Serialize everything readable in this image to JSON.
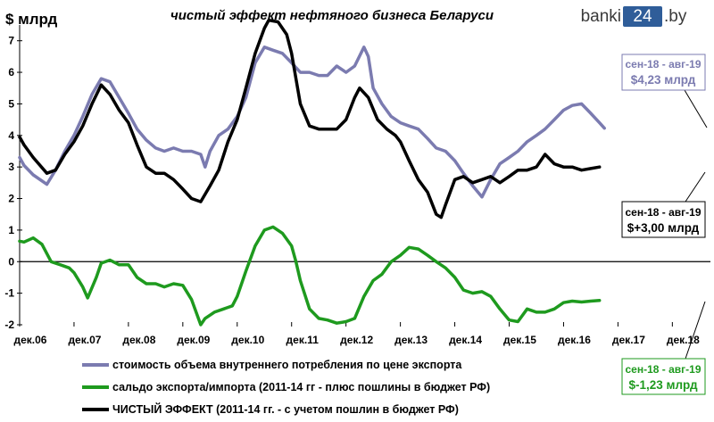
{
  "logo": {
    "prefix": "banki",
    "number": "24",
    "suffix": ".by"
  },
  "chart_data": {
    "type": "line",
    "title": "чистый эффект нефтяного бизнеса Беларуси",
    "unit_label": "$ млрд",
    "ylim": [
      -2,
      7.5
    ],
    "yticks": [
      -2,
      -1,
      0,
      1,
      2,
      3,
      4,
      5,
      6,
      7
    ],
    "xlim": [
      2006.92,
      2019.62
    ],
    "x_tick_labels": [
      {
        "label": "дек.06",
        "x": 2006.92
      },
      {
        "label": "дек.07",
        "x": 2007.92
      },
      {
        "label": "дек.08",
        "x": 2008.92
      },
      {
        "label": "дек.09",
        "x": 2009.92
      },
      {
        "label": "дек.10",
        "x": 2010.92
      },
      {
        "label": "дек.11",
        "x": 2011.92
      },
      {
        "label": "дек.12",
        "x": 2012.92
      },
      {
        "label": "дек.13",
        "x": 2013.92
      },
      {
        "label": "дек.14",
        "x": 2014.92
      },
      {
        "label": "дек.15",
        "x": 2015.92
      },
      {
        "label": "дек.16",
        "x": 2016.92
      },
      {
        "label": "дек.17",
        "x": 2017.92
      },
      {
        "label": "дек.18",
        "x": 2018.92
      }
    ],
    "grid": false,
    "legend_position": "bottom-left",
    "series": [
      {
        "name": "стоимость объема внутреннего потребления по цене экспорта",
        "color": "#7b7bb0",
        "points": [
          [
            2006.92,
            3.3
          ],
          [
            2007.0,
            3.05
          ],
          [
            2007.17,
            2.75
          ],
          [
            2007.42,
            2.45
          ],
          [
            2007.58,
            2.9
          ],
          [
            2007.75,
            3.5
          ],
          [
            2007.92,
            4.0
          ],
          [
            2008.08,
            4.6
          ],
          [
            2008.25,
            5.3
          ],
          [
            2008.42,
            5.8
          ],
          [
            2008.58,
            5.7
          ],
          [
            2008.75,
            5.2
          ],
          [
            2008.92,
            4.7
          ],
          [
            2009.08,
            4.2
          ],
          [
            2009.25,
            3.85
          ],
          [
            2009.42,
            3.6
          ],
          [
            2009.58,
            3.5
          ],
          [
            2009.75,
            3.6
          ],
          [
            2009.92,
            3.5
          ],
          [
            2010.08,
            3.5
          ],
          [
            2010.25,
            3.4
          ],
          [
            2010.33,
            3.0
          ],
          [
            2010.42,
            3.5
          ],
          [
            2010.58,
            4.0
          ],
          [
            2010.75,
            4.2
          ],
          [
            2010.92,
            4.6
          ],
          [
            2011.08,
            5.2
          ],
          [
            2011.25,
            6.3
          ],
          [
            2011.42,
            6.8
          ],
          [
            2011.58,
            6.7
          ],
          [
            2011.75,
            6.6
          ],
          [
            2011.92,
            6.3
          ],
          [
            2012.08,
            6.0
          ],
          [
            2012.25,
            6.0
          ],
          [
            2012.42,
            5.9
          ],
          [
            2012.58,
            5.9
          ],
          [
            2012.75,
            6.2
          ],
          [
            2012.92,
            6.0
          ],
          [
            2013.08,
            6.2
          ],
          [
            2013.25,
            6.8
          ],
          [
            2013.33,
            6.5
          ],
          [
            2013.42,
            5.5
          ],
          [
            2013.58,
            5.0
          ],
          [
            2013.75,
            4.6
          ],
          [
            2013.92,
            4.4
          ],
          [
            2014.08,
            4.3
          ],
          [
            2014.25,
            4.2
          ],
          [
            2014.42,
            3.9
          ],
          [
            2014.58,
            3.6
          ],
          [
            2014.75,
            3.5
          ],
          [
            2014.92,
            3.2
          ],
          [
            2015.08,
            2.8
          ],
          [
            2015.25,
            2.4
          ],
          [
            2015.42,
            2.05
          ],
          [
            2015.58,
            2.6
          ],
          [
            2015.75,
            3.1
          ],
          [
            2015.92,
            3.3
          ],
          [
            2016.08,
            3.5
          ],
          [
            2016.25,
            3.8
          ],
          [
            2016.42,
            4.0
          ],
          [
            2016.58,
            4.2
          ],
          [
            2016.75,
            4.5
          ],
          [
            2016.92,
            4.8
          ],
          [
            2017.08,
            4.95
          ],
          [
            2017.25,
            5.0
          ],
          [
            2017.42,
            4.7
          ],
          [
            2017.58,
            4.4
          ],
          [
            2017.67,
            4.23
          ]
        ]
      },
      {
        "name": "сальдо экспорта/импорта (2011-14 гг  - плюс пошлины в бюджет РФ)",
        "color": "#1e9a1e",
        "points": [
          [
            2006.92,
            0.65
          ],
          [
            2007.0,
            0.62
          ],
          [
            2007.17,
            0.75
          ],
          [
            2007.33,
            0.55
          ],
          [
            2007.5,
            0.0
          ],
          [
            2007.67,
            -0.1
          ],
          [
            2007.83,
            -0.2
          ],
          [
            2007.92,
            -0.35
          ],
          [
            2008.08,
            -0.8
          ],
          [
            2008.17,
            -1.15
          ],
          [
            2008.33,
            -0.5
          ],
          [
            2008.42,
            -0.05
          ],
          [
            2008.58,
            0.05
          ],
          [
            2008.75,
            -0.1
          ],
          [
            2008.92,
            -0.1
          ],
          [
            2009.08,
            -0.5
          ],
          [
            2009.25,
            -0.7
          ],
          [
            2009.42,
            -0.7
          ],
          [
            2009.58,
            -0.8
          ],
          [
            2009.75,
            -0.7
          ],
          [
            2009.92,
            -0.75
          ],
          [
            2010.08,
            -1.2
          ],
          [
            2010.25,
            -2.0
          ],
          [
            2010.33,
            -1.8
          ],
          [
            2010.5,
            -1.6
          ],
          [
            2010.67,
            -1.5
          ],
          [
            2010.83,
            -1.4
          ],
          [
            2010.92,
            -1.1
          ],
          [
            2011.08,
            -0.3
          ],
          [
            2011.25,
            0.5
          ],
          [
            2011.42,
            1.0
          ],
          [
            2011.58,
            1.1
          ],
          [
            2011.75,
            0.9
          ],
          [
            2011.92,
            0.5
          ],
          [
            2012.0,
            0.0
          ],
          [
            2012.08,
            -0.6
          ],
          [
            2012.25,
            -1.5
          ],
          [
            2012.42,
            -1.8
          ],
          [
            2012.58,
            -1.85
          ],
          [
            2012.75,
            -1.95
          ],
          [
            2012.92,
            -1.9
          ],
          [
            2013.08,
            -1.8
          ],
          [
            2013.25,
            -1.1
          ],
          [
            2013.42,
            -0.6
          ],
          [
            2013.58,
            -0.4
          ],
          [
            2013.75,
            0.0
          ],
          [
            2013.92,
            0.2
          ],
          [
            2014.08,
            0.45
          ],
          [
            2014.25,
            0.4
          ],
          [
            2014.42,
            0.2
          ],
          [
            2014.58,
            0.0
          ],
          [
            2014.75,
            -0.2
          ],
          [
            2014.92,
            -0.5
          ],
          [
            2015.08,
            -0.9
          ],
          [
            2015.25,
            -1.0
          ],
          [
            2015.42,
            -0.95
          ],
          [
            2015.58,
            -1.1
          ],
          [
            2015.75,
            -1.5
          ],
          [
            2015.92,
            -1.85
          ],
          [
            2016.08,
            -1.9
          ],
          [
            2016.25,
            -1.5
          ],
          [
            2016.42,
            -1.6
          ],
          [
            2016.58,
            -1.6
          ],
          [
            2016.75,
            -1.5
          ],
          [
            2016.92,
            -1.3
          ],
          [
            2017.08,
            -1.25
          ],
          [
            2017.25,
            -1.28
          ],
          [
            2017.42,
            -1.25
          ],
          [
            2017.58,
            -1.23
          ]
        ]
      },
      {
        "name": "ЧИСТЫЙ ЭФФЕКТ (2011-14 гг. - с учетом пошлин в бюджет РФ)",
        "color": "#000000",
        "points": [
          [
            2006.92,
            3.95
          ],
          [
            2007.0,
            3.7
          ],
          [
            2007.17,
            3.3
          ],
          [
            2007.42,
            2.8
          ],
          [
            2007.58,
            2.9
          ],
          [
            2007.75,
            3.4
          ],
          [
            2007.92,
            3.8
          ],
          [
            2008.08,
            4.3
          ],
          [
            2008.25,
            5.0
          ],
          [
            2008.42,
            5.6
          ],
          [
            2008.58,
            5.3
          ],
          [
            2008.75,
            4.8
          ],
          [
            2008.92,
            4.4
          ],
          [
            2009.08,
            3.7
          ],
          [
            2009.25,
            3.0
          ],
          [
            2009.42,
            2.8
          ],
          [
            2009.58,
            2.8
          ],
          [
            2009.75,
            2.6
          ],
          [
            2009.92,
            2.3
          ],
          [
            2010.08,
            2.0
          ],
          [
            2010.25,
            1.9
          ],
          [
            2010.42,
            2.4
          ],
          [
            2010.58,
            2.9
          ],
          [
            2010.75,
            3.8
          ],
          [
            2010.92,
            4.5
          ],
          [
            2011.08,
            5.5
          ],
          [
            2011.25,
            6.6
          ],
          [
            2011.42,
            7.4
          ],
          [
            2011.5,
            7.65
          ],
          [
            2011.67,
            7.6
          ],
          [
            2011.83,
            7.2
          ],
          [
            2011.92,
            6.6
          ],
          [
            2012.08,
            5.0
          ],
          [
            2012.25,
            4.3
          ],
          [
            2012.42,
            4.2
          ],
          [
            2012.58,
            4.2
          ],
          [
            2012.75,
            4.2
          ],
          [
            2012.92,
            4.5
          ],
          [
            2013.08,
            5.2
          ],
          [
            2013.17,
            5.5
          ],
          [
            2013.33,
            5.2
          ],
          [
            2013.5,
            4.5
          ],
          [
            2013.67,
            4.2
          ],
          [
            2013.83,
            4.0
          ],
          [
            2013.92,
            3.8
          ],
          [
            2014.08,
            3.2
          ],
          [
            2014.25,
            2.6
          ],
          [
            2014.42,
            2.2
          ],
          [
            2014.58,
            1.5
          ],
          [
            2014.67,
            1.4
          ],
          [
            2014.75,
            1.8
          ],
          [
            2014.92,
            2.6
          ],
          [
            2015.08,
            2.7
          ],
          [
            2015.25,
            2.5
          ],
          [
            2015.42,
            2.6
          ],
          [
            2015.58,
            2.7
          ],
          [
            2015.75,
            2.5
          ],
          [
            2015.92,
            2.7
          ],
          [
            2016.08,
            2.9
          ],
          [
            2016.25,
            2.9
          ],
          [
            2016.42,
            3.0
          ],
          [
            2016.58,
            3.4
          ],
          [
            2016.75,
            3.1
          ],
          [
            2016.92,
            3.0
          ],
          [
            2017.08,
            3.0
          ],
          [
            2017.25,
            2.9
          ],
          [
            2017.42,
            2.95
          ],
          [
            2017.58,
            3.0
          ]
        ]
      }
    ],
    "annotations": [
      {
        "period": "сен-18 - авг-19",
        "value": "$4,23 млрд",
        "color": "#7b7bb0"
      },
      {
        "period": "сен-18 - авг-19",
        "value": "$+3,00 млрд",
        "color": "#000000"
      },
      {
        "period": "сен-18 - авг-19",
        "value": "$-1,23 млрд",
        "color": "#1e9a1e"
      }
    ]
  }
}
